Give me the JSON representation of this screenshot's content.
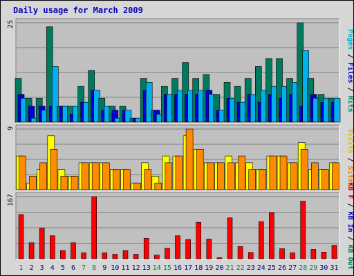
{
  "title": "Daily usage for March 2009",
  "chart_data": [
    {
      "type": "bar",
      "categories": [
        "1",
        "2",
        "3",
        "4",
        "5",
        "6",
        "7",
        "8",
        "9",
        "10",
        "11",
        "12",
        "13",
        "14",
        "15",
        "16",
        "17",
        "18",
        "19",
        "20",
        "21",
        "22",
        "23",
        "24",
        "25",
        "26",
        "27",
        "28",
        "29",
        "30",
        "31"
      ],
      "weekend_days": [
        "1",
        "7",
        "8",
        "14",
        "15",
        "21",
        "22",
        "28",
        "29"
      ],
      "ymax_label": "25",
      "ylim": [
        0,
        25
      ],
      "grid": true,
      "right_label": [
        {
          "text": "Pages",
          "color": "#00b0d0"
        },
        {
          "text": " / ",
          "color": "#000000"
        },
        {
          "text": "Files",
          "color": "#0000c0"
        },
        {
          "text": " / ",
          "color": "#000000"
        },
        {
          "text": "Hits",
          "color": "#008060"
        }
      ],
      "series": [
        {
          "name": "Hits",
          "color": "#007a5e",
          "values": [
            11,
            6,
            6,
            24,
            4,
            4,
            9,
            13,
            6,
            4,
            4,
            1,
            11,
            3,
            9,
            11,
            15,
            11,
            12,
            7,
            10,
            9,
            11,
            14,
            16,
            16,
            11,
            25,
            11,
            7,
            6
          ]
        },
        {
          "name": "Files",
          "color": "#0000e0",
          "values": [
            7,
            4,
            4,
            4,
            4,
            2,
            5,
            8,
            3,
            3,
            3,
            1,
            8,
            3,
            7,
            7,
            7,
            7,
            8,
            3,
            6,
            5,
            7,
            5,
            7,
            6,
            7,
            4,
            7,
            5,
            5
          ]
        },
        {
          "name": "Pages",
          "color": "#00b0f0",
          "values": [
            6,
            1,
            3,
            14,
            4,
            4,
            5,
            8,
            4,
            1,
            3,
            1,
            10,
            2,
            7,
            8,
            8,
            8,
            7,
            3,
            6,
            5,
            7,
            8,
            9,
            9,
            10,
            18,
            6,
            6,
            6
          ]
        }
      ]
    },
    {
      "type": "bar",
      "categories": [
        "1",
        "2",
        "3",
        "4",
        "5",
        "6",
        "7",
        "8",
        "9",
        "10",
        "11",
        "12",
        "13",
        "14",
        "15",
        "16",
        "17",
        "18",
        "19",
        "20",
        "21",
        "22",
        "23",
        "24",
        "25",
        "26",
        "27",
        "28",
        "29",
        "30",
        "31"
      ],
      "ymax_label": "9",
      "ylim": [
        0,
        9
      ],
      "grid": true,
      "right_label": [
        {
          "text": "Visits",
          "color": "#d8c000"
        },
        {
          "text": " / ",
          "color": "#000000"
        },
        {
          "text": "Sites",
          "color": "#f08000"
        }
      ],
      "series": [
        {
          "name": "Visits",
          "color": "#ffff00",
          "values": [
            5,
            1,
            3,
            8,
            3,
            2,
            4,
            4,
            4,
            3,
            3,
            1,
            4,
            2,
            5,
            5,
            8,
            6,
            4,
            4,
            5,
            4,
            4,
            3,
            5,
            5,
            4,
            7,
            3,
            3,
            4
          ]
        },
        {
          "name": "Sites",
          "color": "#ff8c00",
          "values": [
            5,
            2,
            4,
            6,
            2,
            2,
            4,
            4,
            4,
            3,
            3,
            1,
            3,
            1,
            4,
            5,
            9,
            6,
            4,
            4,
            4,
            5,
            3,
            3,
            5,
            5,
            4,
            6,
            4,
            3,
            4
          ]
        }
      ]
    },
    {
      "type": "bar",
      "categories": [
        "1",
        "2",
        "3",
        "4",
        "5",
        "6",
        "7",
        "8",
        "9",
        "10",
        "11",
        "12",
        "13",
        "14",
        "15",
        "16",
        "17",
        "18",
        "19",
        "20",
        "21",
        "22",
        "23",
        "24",
        "25",
        "26",
        "27",
        "28",
        "29",
        "30",
        "31"
      ],
      "ymax_label": "167",
      "ylim": [
        0,
        167
      ],
      "grid": true,
      "right_label": [
        {
          "text": "KB F",
          "color": "#d00000"
        },
        {
          "text": " / ",
          "color": "#000000"
        },
        {
          "text": "KB In",
          "color": "#0000c0"
        },
        {
          "text": " / ",
          "color": "#000000"
        },
        {
          "text": "KB Out",
          "color": "#008060"
        }
      ],
      "series": [
        {
          "name": "KB F",
          "color": "#ff0000",
          "values": [
            119,
            43,
            82,
            62,
            22,
            43,
            16,
            167,
            16,
            12,
            22,
            12,
            55,
            10,
            28,
            62,
            52,
            98,
            53,
            3,
            110,
            33,
            17,
            100,
            124,
            27,
            16,
            155,
            25,
            18,
            36
          ]
        }
      ]
    }
  ]
}
